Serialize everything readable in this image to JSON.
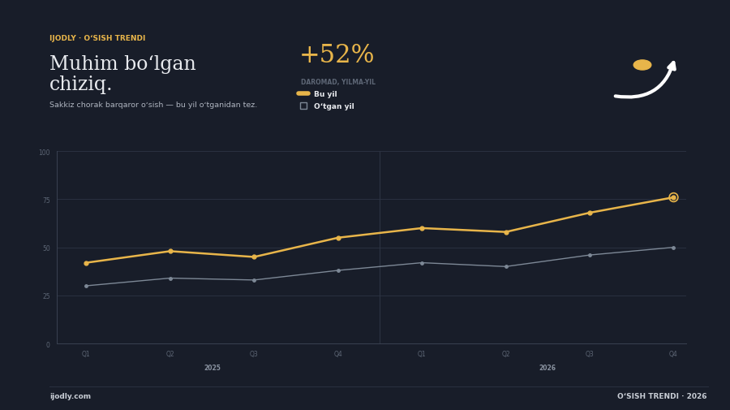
{
  "chart_data": {
    "type": "line",
    "kicker": "IJODLY · OʻSISH TRENDI",
    "title": "Muhim boʻlgan\nchiziq.",
    "subtitle": "Sakkiz chorak barqaror oʻsish — bu yil oʻtganidan tez.",
    "headline": {
      "value": "+52%",
      "label": "DAROMAD, YILMA-YIL"
    },
    "categories": [
      "Q1",
      "Q2",
      "Q3",
      "Q4",
      "Q1",
      "Q2",
      "Q3",
      "Q4"
    ],
    "x_groups": [
      {
        "label": "2025",
        "count": 4
      },
      {
        "label": "2026",
        "count": 4
      }
    ],
    "series": [
      {
        "name": "Bu yil",
        "color": "#e8b54a",
        "marker": "o",
        "line_style": "solid",
        "values": [
          42,
          48,
          45,
          55,
          60,
          58,
          68,
          76
        ]
      },
      {
        "name": "Oʻtgan yil",
        "color": "#7d8896",
        "marker": "o",
        "line_style": "solid",
        "values": [
          30,
          34,
          33,
          38,
          42,
          40,
          46,
          50
        ]
      }
    ],
    "ylim": [
      0,
      100
    ],
    "yticks": [
      0,
      25,
      50,
      75,
      100
    ],
    "grid": true,
    "legend": "upper left",
    "footer_left": "ijodly.com",
    "footer_right": "OʻSISH TRENDI · 2026"
  }
}
